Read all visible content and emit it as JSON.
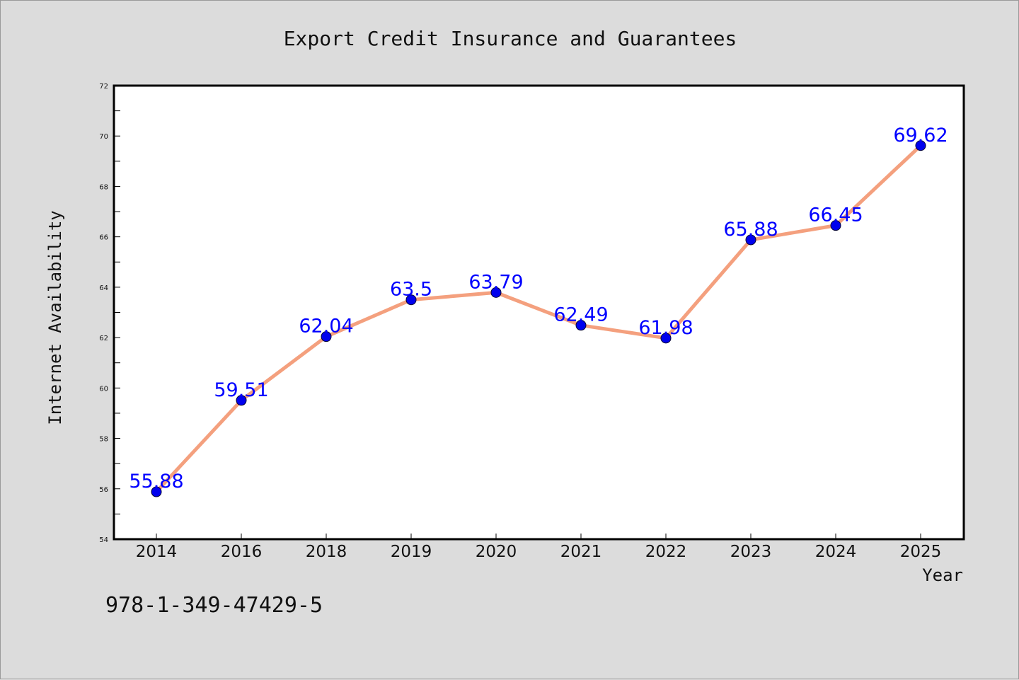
{
  "chart_data": {
    "type": "line",
    "title": "Export Credit Insurance and Guarantees",
    "xlabel": "Year",
    "ylabel": "Internet Availability",
    "categories": [
      "2014",
      "2016",
      "2018",
      "2019",
      "2020",
      "2021",
      "2022",
      "2023",
      "2024",
      "2025"
    ],
    "values": [
      55.88,
      59.51,
      62.04,
      63.5,
      63.79,
      62.49,
      61.98,
      65.88,
      66.45,
      69.62
    ],
    "data_labels": [
      "55.88",
      "59.51",
      "62.04",
      "63.5",
      "63.79",
      "62.49",
      "61.98",
      "65.88",
      "66.45",
      "69.62"
    ],
    "ylim": [
      54,
      72
    ],
    "yticks": [
      54,
      56,
      58,
      60,
      62,
      64,
      66,
      68,
      70,
      72
    ],
    "grid": false,
    "legend": "none",
    "colors": {
      "line": "#f4a07e",
      "marker": "#0000ee",
      "label": "#0000ff",
      "background": "#dcdcdc",
      "plot_background": "#ffffff"
    }
  },
  "footer_text": "978-1-349-47429-5"
}
